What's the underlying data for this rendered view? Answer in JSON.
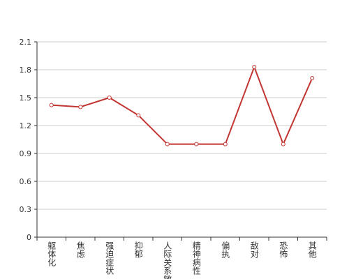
{
  "chart_data": {
    "type": "line",
    "categories": [
      "躯体化",
      "焦虑",
      "强迫症状",
      "抑郁",
      "人际关系敏感",
      "精神病性",
      "偏执",
      "敌对",
      "恐怖",
      "其他"
    ],
    "series": [
      {
        "color": "#c23531",
        "values": [
          1.42,
          1.4,
          1.5,
          1.31,
          1.0,
          1.0,
          1.0,
          1.83,
          1.0,
          1.71
        ]
      }
    ],
    "ylim": [
      0,
      2.1
    ],
    "yticks": [
      0,
      0.3,
      0.6,
      0.9,
      1.2,
      1.5,
      1.8,
      2.1
    ],
    "grid": true
  }
}
